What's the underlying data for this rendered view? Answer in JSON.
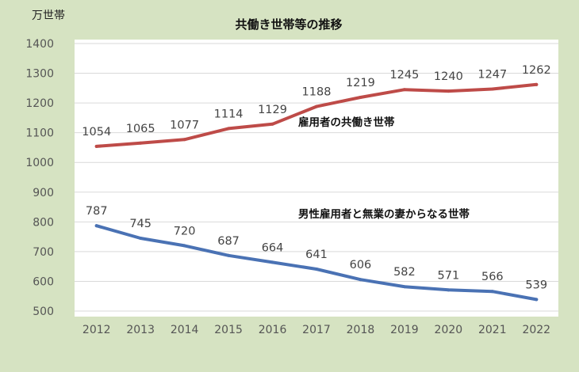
{
  "chart_data": {
    "type": "line",
    "title": "共働き世帯等の推移",
    "ylabel": "万世帯",
    "xlabel": "",
    "categories": [
      "2012",
      "2013",
      "2014",
      "2015",
      "2016",
      "2017",
      "2018",
      "2019",
      "2020",
      "2021",
      "2022"
    ],
    "ylim": [
      500,
      1400
    ],
    "yticks": [
      500,
      600,
      700,
      800,
      900,
      1000,
      1100,
      1200,
      1300,
      1400
    ],
    "grid": true,
    "legend": "inline labels",
    "series": [
      {
        "name": "雇用者の共働き世帯",
        "color": "#be4b48",
        "values": [
          1054,
          1065,
          1077,
          1114,
          1129,
          1188,
          1219,
          1245,
          1240,
          1247,
          1262
        ]
      },
      {
        "name": "男性雇用者と無業の妻からなる世帯",
        "color": "#4a72b4",
        "values": [
          787,
          745,
          720,
          687,
          664,
          641,
          606,
          582,
          571,
          566,
          539
        ]
      }
    ]
  },
  "colors": {
    "background": "#d6e3c2",
    "plot_area": "#ffffff",
    "grid": "#d9d9d9"
  }
}
